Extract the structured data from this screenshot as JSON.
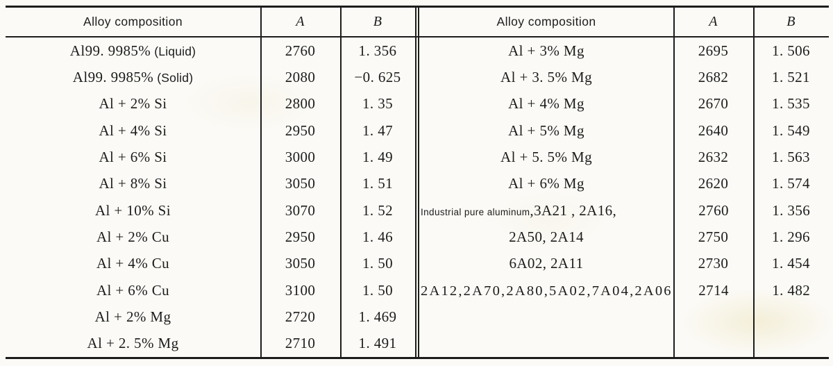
{
  "colors": {
    "ink": "#1c1c1c",
    "paper": "#fbfaf6"
  },
  "table": {
    "headers": {
      "composition": "Alloy composition",
      "a": "A",
      "b": "B"
    },
    "left_rows": [
      {
        "main": "Al99. 9985%",
        "note": " (Liquid)",
        "a": "2760",
        "b": "1. 356"
      },
      {
        "main": "Al99. 9985%",
        "note": " (Solid)",
        "a": "2080",
        "b": "−0. 625"
      },
      {
        "main": "Al + 2% Si",
        "a": "2800",
        "b": "1. 35"
      },
      {
        "main": "Al + 4% Si",
        "a": "2950",
        "b": "1. 47"
      },
      {
        "main": "Al + 6% Si",
        "a": "3000",
        "b": "1. 49"
      },
      {
        "main": "Al + 8% Si",
        "a": "3050",
        "b": "1. 51"
      },
      {
        "main": "Al + 10% Si",
        "a": "3070",
        "b": "1. 52"
      },
      {
        "main": "Al + 2% Cu",
        "a": "2950",
        "b": "1. 46"
      },
      {
        "main": "Al + 4% Cu",
        "a": "3050",
        "b": "1. 50"
      },
      {
        "main": "Al + 6% Cu",
        "a": "3100",
        "b": "1. 50"
      },
      {
        "main": "Al + 2% Mg",
        "a": "2720",
        "b": "1. 469"
      },
      {
        "main": "Al + 2. 5% Mg",
        "a": "2710",
        "b": "1. 491"
      }
    ],
    "right_rows": [
      {
        "main": "Al + 3% Mg",
        "a": "2695",
        "b": "1. 506"
      },
      {
        "main": "Al + 3. 5% Mg",
        "a": "2682",
        "b": "1. 521"
      },
      {
        "main": "Al + 4% Mg",
        "a": "2670",
        "b": "1. 535"
      },
      {
        "main": "Al + 5% Mg",
        "a": "2640",
        "b": "1. 549"
      },
      {
        "main": "Al + 5. 5% Mg",
        "a": "2632",
        "b": "1. 563"
      },
      {
        "main": "Al + 6% Mg",
        "a": "2620",
        "b": "1. 574"
      },
      {
        "prefix": "Industrial pure aluminum",
        "main": ",3A21 , 2A16,",
        "align": "left",
        "a": "2760",
        "b": "1. 356"
      },
      {
        "main": "2A50, 2A14",
        "a": "2750",
        "b": "1. 296"
      },
      {
        "main": "6A02, 2A11",
        "a": "2730",
        "b": "1. 454"
      },
      {
        "main": "2A12,2A70,2A80,5A02,7A04,2A06",
        "align": "left",
        "wide": true,
        "a": "2714",
        "b": "1. 482"
      },
      {
        "main": "",
        "a": "",
        "b": ""
      },
      {
        "main": "",
        "a": "",
        "b": ""
      }
    ]
  }
}
